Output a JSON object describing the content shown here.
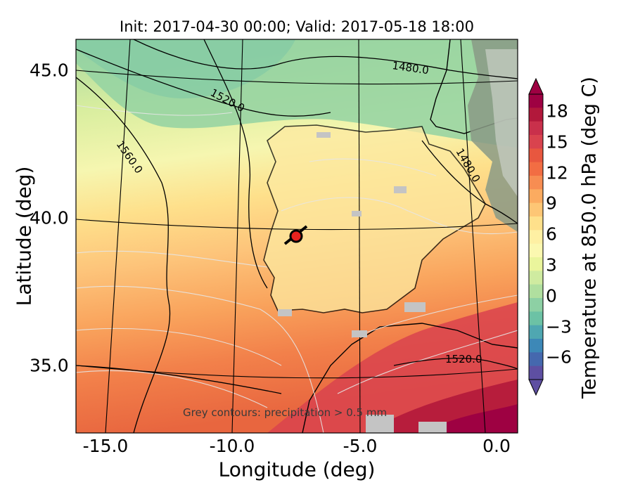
{
  "title": "Init: 2017-04-30 00:00; Valid: 2017-05-18 18:00",
  "map": {
    "xlabel": "Longitude (deg)",
    "ylabel": "Latitude (deg)",
    "xticks": [
      "-15.0",
      "-10.0",
      "-5.0",
      "0.0"
    ],
    "yticks": [
      "45.0",
      "40.0",
      "35.0"
    ],
    "contour_labels": [
      "1480.0",
      "1520.0",
      "1560.0",
      "1480.0",
      "1520.0"
    ],
    "footnote": "Grey contours: precipitation  > 0.5 mm",
    "marker_color": "#e8221e"
  },
  "colorbar": {
    "label": "Temperature at 850.0 hPa (deg C)",
    "ticks": [
      "18",
      "15",
      "12",
      "9",
      "6",
      "3",
      "0",
      "−3",
      "−6"
    ],
    "colors_top_to_bottom": [
      "#9e0142",
      "#b2183b",
      "#c9304b",
      "#d9434e",
      "#e8573f",
      "#f26d43",
      "#f78d52",
      "#fbab60",
      "#fdc675",
      "#fee08b",
      "#fef0a3",
      "#fbf8b0",
      "#eaf59c",
      "#cfeba0",
      "#b0df9f",
      "#8dd0a4",
      "#6cc2a5",
      "#4fa7b1",
      "#3d88b7",
      "#4568ae",
      "#5e4fa2"
    ]
  }
}
